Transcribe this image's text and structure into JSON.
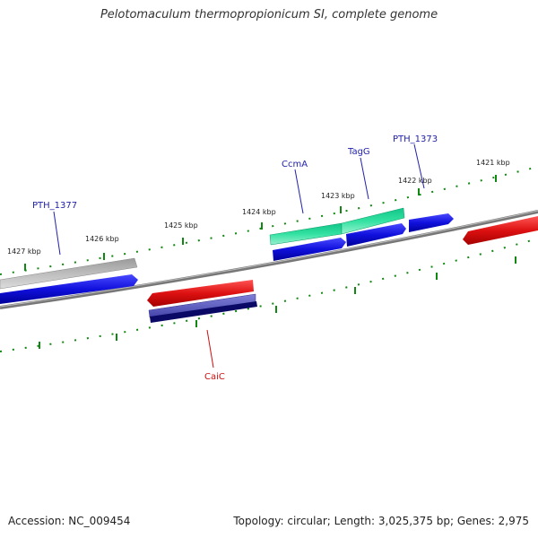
{
  "title": "Pelotomaculum thermopropionicum SI, complete genome",
  "footer": {
    "accession": "Accession: NC_009454",
    "summary": "Topology: circular; Length: 3,025,375 bp; Genes: 2,975"
  },
  "scale": {
    "ticks": [
      "1427 kbp",
      "1426 kbp",
      "1425 kbp",
      "1424 kbp",
      "1423 kbp",
      "1422 kbp",
      "1421 kbp"
    ]
  },
  "genes": {
    "pth1377": "PTH_1377",
    "ccma": "CcmA",
    "tagg": "TagG",
    "pth1373": "PTH_1373",
    "caic": "CaiC"
  },
  "colors": {
    "forward": "#1010dd",
    "reverse": "#dd1111",
    "gray": "#a8a8a8",
    "teal": "#22dd99",
    "purple": "#5555bb",
    "navy": "#0a0a66",
    "tick": "#118811",
    "label_blue": "#2222aa",
    "label_red": "#cc1111"
  }
}
